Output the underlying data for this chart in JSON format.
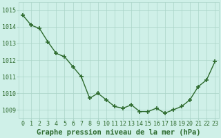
{
  "x": [
    0,
    1,
    2,
    3,
    4,
    5,
    6,
    7,
    8,
    9,
    10,
    11,
    12,
    13,
    14,
    15,
    16,
    17,
    18,
    19,
    20,
    21,
    22,
    23
  ],
  "y": [
    1014.7,
    1014.1,
    1013.9,
    1013.1,
    1012.4,
    1012.2,
    1011.6,
    1011.0,
    1009.7,
    1010.0,
    1009.6,
    1009.2,
    1009.1,
    1009.3,
    1008.9,
    1008.9,
    1009.1,
    1008.8,
    1009.0,
    1009.2,
    1009.6,
    1010.4,
    1010.8,
    1011.9
  ],
  "line_color": "#2d6a2d",
  "marker": "+",
  "marker_color": "#2d6a2d",
  "bg_color": "#cff0e8",
  "grid_color": "#aad4c8",
  "xlabel": "Graphe pression niveau de la mer (hPa)",
  "ylim": [
    1008.5,
    1015.5
  ],
  "yticks": [
    1009,
    1010,
    1011,
    1012,
    1013,
    1014,
    1015
  ],
  "xticks": [
    0,
    1,
    2,
    3,
    4,
    5,
    6,
    7,
    8,
    9,
    10,
    11,
    12,
    13,
    14,
    15,
    16,
    17,
    18,
    19,
    20,
    21,
    22,
    23
  ],
  "xlabel_fontsize": 7.5,
  "tick_fontsize": 6.0,
  "linewidth": 1.0,
  "markersize": 5,
  "marker_ew": 1.2
}
